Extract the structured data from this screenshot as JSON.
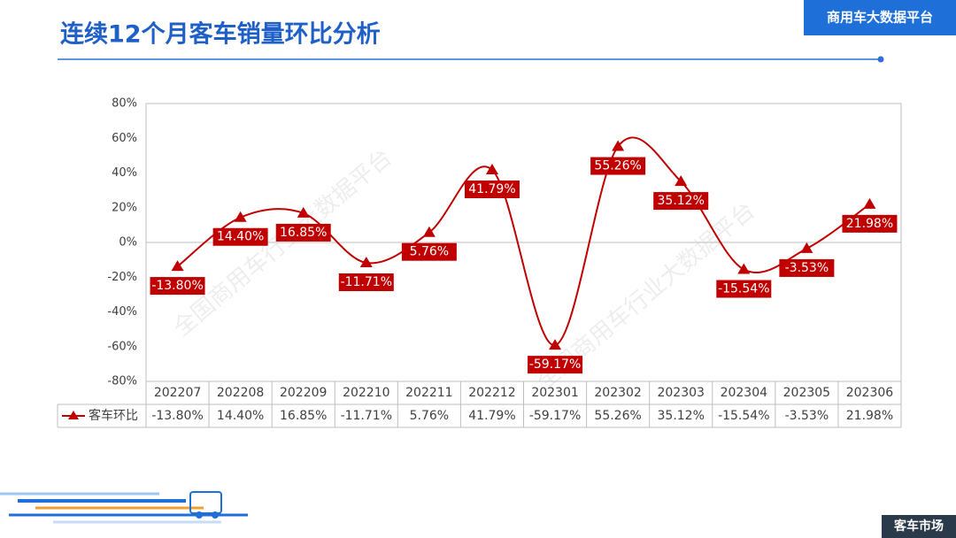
{
  "chart_data": {
    "type": "line",
    "title": "连续12个月客车销量环比分析",
    "categories": [
      "202207",
      "202208",
      "202209",
      "202210",
      "202211",
      "202212",
      "202301",
      "202302",
      "202303",
      "202304",
      "202305",
      "202306"
    ],
    "series": [
      {
        "name": "客车环比",
        "color": "#c00000",
        "values": [
          -13.8,
          14.4,
          16.85,
          -11.71,
          5.76,
          41.79,
          -59.17,
          55.26,
          35.12,
          -15.54,
          -3.53,
          21.98
        ],
        "value_labels": [
          "-13.80%",
          "14.40%",
          "16.85%",
          "-11.71%",
          "5.76%",
          "41.79%",
          "-59.17%",
          "55.26%",
          "35.12%",
          "-15.54%",
          "-3.53%",
          "21.98%"
        ]
      }
    ],
    "ylim": [
      -80,
      80
    ],
    "yticks": [
      {
        "value": -80,
        "label": "-80%"
      },
      {
        "value": -60,
        "label": "-60%"
      },
      {
        "value": -40,
        "label": "-40%"
      },
      {
        "value": -20,
        "label": "-20%"
      },
      {
        "value": 0,
        "label": "0%"
      },
      {
        "value": 20,
        "label": "20%"
      },
      {
        "value": 40,
        "label": "40%"
      },
      {
        "value": 60,
        "label": "60%"
      },
      {
        "value": 80,
        "label": "80%"
      }
    ]
  },
  "header_badge": "商用车大数据平台",
  "footer_label": "客车市场",
  "watermark": "全国商用车行业大数据平台"
}
